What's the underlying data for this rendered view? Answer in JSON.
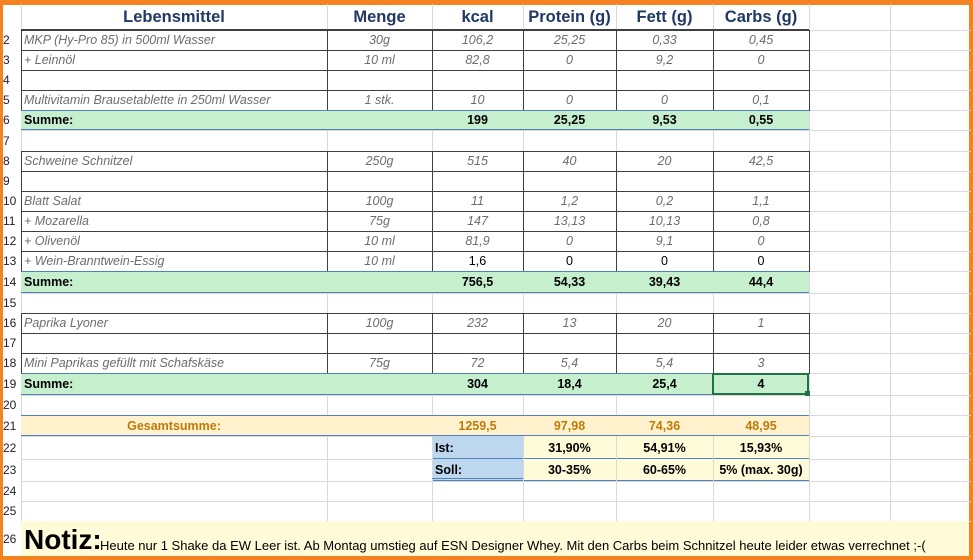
{
  "headers": [
    "Lebensmittel",
    "Menge",
    "kcal",
    "Protein (g)",
    "Fett (g)",
    "Carbs (g)"
  ],
  "row_numbers": [
    "2",
    "3",
    "4",
    "5",
    "6",
    "7",
    "8",
    "9",
    "10",
    "11",
    "12",
    "13",
    "14",
    "15",
    "16",
    "17",
    "18",
    "19",
    "20",
    "21",
    "22",
    "23",
    "24",
    "25",
    "26"
  ],
  "rows": {
    "r2": [
      "MKP (Hy-Pro 85) in 500ml Wasser",
      "30g",
      "106,2",
      "25,25",
      "0,33",
      "0,45"
    ],
    "r3": [
      " + Leinnöl",
      "10 ml",
      "82,8",
      "0",
      "9,2",
      "0"
    ],
    "r5": [
      "Multivitamin Brausetablette in 250ml Wasser",
      "1 stk.",
      "10",
      "0",
      "0",
      "0,1"
    ],
    "r6": [
      "Summe:",
      "",
      "199",
      "25,25",
      "9,53",
      "0,55"
    ],
    "r8": [
      "Schweine Schnitzel",
      "250g",
      "515",
      "40",
      "20",
      "42,5"
    ],
    "r10": [
      "Blatt Salat",
      "100g",
      "11",
      "1,2",
      "0,2",
      "1,1"
    ],
    "r11": [
      " + Mozarella",
      "75g",
      "147",
      "13,13",
      "10,13",
      "0,8"
    ],
    "r12": [
      " + Olivenöl",
      "10 ml",
      "81,9",
      "0",
      "9,1",
      "0"
    ],
    "r13": [
      " + Wein-Branntwein-Essig",
      "10 ml",
      "1,6",
      "0",
      "0",
      "0"
    ],
    "r14": [
      "Summe:",
      "",
      "756,5",
      "54,33",
      "39,43",
      "44,4"
    ],
    "r16": [
      "Paprika Lyoner",
      "100g",
      "232",
      "13",
      "20",
      "1"
    ],
    "r18": [
      "Mini Paprikas gefüllt mit Schafskäse",
      "75g",
      "72",
      "5,4",
      "5,4",
      "3"
    ],
    "r19": [
      "Summe:",
      "",
      "304",
      "18,4",
      "25,4",
      "4"
    ],
    "r21": [
      "Gesamtsumme:",
      "1259,5",
      "97,98",
      "74,36",
      "48,95"
    ],
    "r22": [
      "Ist:",
      "31,90%",
      "54,91%",
      "15,93%"
    ],
    "r23": [
      "Soll:",
      "30-35%",
      "60-65%",
      "5% (max. 30g)"
    ]
  },
  "notiz": {
    "title": "Notiz:",
    "text": "Heute nur 1 Shake da EW Leer ist. Ab Montag umstieg auf ESN Designer Whey. Mit den Carbs beim Schnitzel heute leider etwas verrechnet ;-("
  },
  "colors": {
    "frame": "#f58220",
    "sum_row": "#c6efce",
    "total_row": "#fff2cc",
    "label_blue": "#bdd7ee",
    "header_text": "#1f3864",
    "selection": "#217346"
  }
}
